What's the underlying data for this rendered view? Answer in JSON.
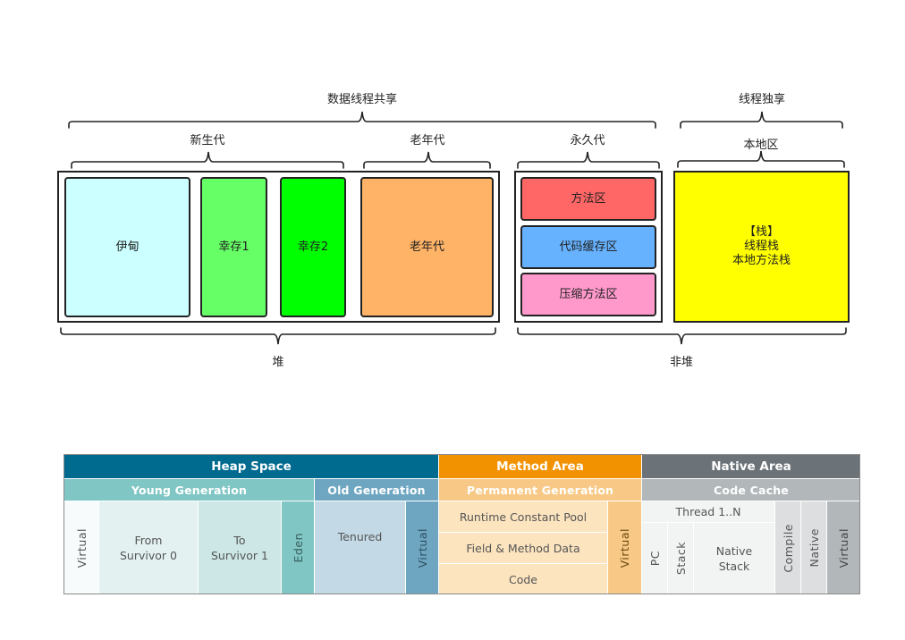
{
  "top": {
    "shared_label": "数据线程共享",
    "private_label": "线程独享",
    "young_label": "新生代",
    "old_label": "老年代",
    "perm_label": "永久代",
    "native_label": "本地区",
    "heap_label": "堆",
    "nonheap_label": "非堆",
    "boxes": {
      "eden": "伊甸",
      "survivor1": "幸存1",
      "survivor2": "幸存2",
      "old": "老年代",
      "method": "方法区",
      "codecache": "代码缓存区",
      "compress": "压缩方法区",
      "stack_line1": "【栈】",
      "stack_line2": "线程栈",
      "stack_line3": "本地方法栈"
    },
    "colors": {
      "eden": "#ccffff",
      "survivor1": "#66ff66",
      "survivor2": "#00ff00",
      "old": "#ffb366",
      "method": "#ff6666",
      "codecache": "#66b2ff",
      "compress": "#ff99cc",
      "stack": "#ffff00"
    }
  },
  "table": {
    "heap_space": "Heap Space",
    "method_area": "Method Area",
    "native_area": "Native Area",
    "young_generation": "Young Generation",
    "old_generation": "Old Generation",
    "permanent_generation": "Permanent Generation",
    "code_cache": "Code Cache",
    "virtual": "Virtual",
    "from_survivor_line1": "From",
    "from_survivor_line2": "Survivor 0",
    "to_survivor_line1": "To",
    "to_survivor_line2": "Survivor 1",
    "eden": "Eden",
    "tenured": "Tenured",
    "runtime_constant_pool": "Runtime Constant Pool",
    "field_method_data": "Field & Method Data",
    "code": "Code",
    "thread": "Thread 1..N",
    "pc": "PC",
    "stack": "Stack",
    "native_stack_line1": "Native",
    "native_stack_line2": "Stack",
    "compile": "Compile",
    "native": "Native",
    "colors": {
      "heap_header": "#006b8f",
      "young_sub": "#7fc6c4",
      "old_sub": "#6ea6c2",
      "method_header": "#f39200",
      "perm_sub": "#f8c986",
      "native_header": "#6b7378",
      "code_cache_sub": "#b2b7ba"
    }
  }
}
